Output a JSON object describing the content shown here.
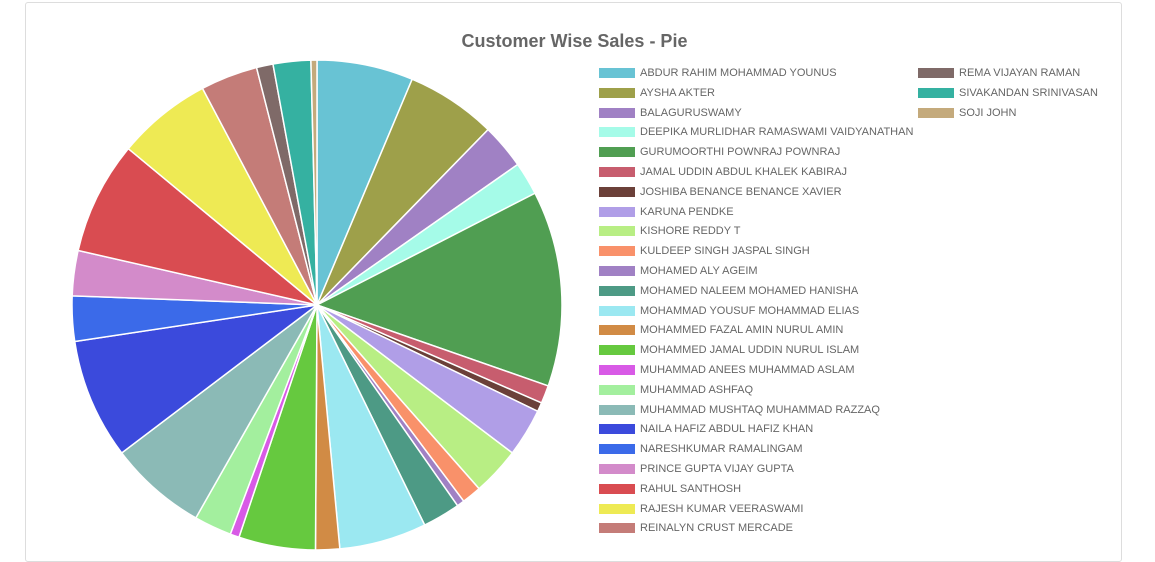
{
  "chart_data": {
    "type": "pie",
    "title": "Customer Wise Sales - Pie",
    "legend_position": "right",
    "series": [
      {
        "label": "ABDUR RAHIM MOHAMMAD YOUNUS",
        "value": 6.4,
        "color": "#68c3d4"
      },
      {
        "label": "AYSHA AKTER",
        "value": 6.0,
        "color": "#9ea04a"
      },
      {
        "label": "BALAGURUSWAMY",
        "value": 3.0,
        "color": "#a081c4"
      },
      {
        "label": "DEEPIKA MURLIDHAR RAMASWAMI VAIDYANATHAN",
        "value": 2.2,
        "color": "#a5fbe8"
      },
      {
        "label": "GURUMOORTHI POWNRAJ POWNRAJ",
        "value": 13.0,
        "color": "#509e52"
      },
      {
        "label": "JAMAL UDDIN ABDUL KHALEK KABIRAJ",
        "value": 1.2,
        "color": "#c75d6e"
      },
      {
        "label": "JOSHIBA BENANCE BENANCE XAVIER",
        "value": 0.6,
        "color": "#6b4039"
      },
      {
        "label": "KARUNA PENDKE",
        "value": 3.2,
        "color": "#b09ee7"
      },
      {
        "label": "KISHORE REDDY T",
        "value": 3.2,
        "color": "#b8ee84"
      },
      {
        "label": "KULDEEP SINGH JASPAL SINGH",
        "value": 1.3,
        "color": "#f9916a"
      },
      {
        "label": "MOHAMED ALY AGEIM",
        "value": 0.5,
        "color": "#a081c4"
      },
      {
        "label": "MOHAMED NALEEM MOHAMED HANISHA",
        "value": 2.5,
        "color": "#4d9a85"
      },
      {
        "label": "MOHAMMAD YOUSUF MOHAMMAD ELIAS",
        "value": 5.8,
        "color": "#9be8f1"
      },
      {
        "label": "MOHAMMED FAZAL AMIN NURUL AMIN",
        "value": 1.6,
        "color": "#d18b45"
      },
      {
        "label": "MOHAMMED JAMAL UDDIN NURUL ISLAM",
        "value": 5.1,
        "color": "#66c93f"
      },
      {
        "label": "MUHAMMAD ANEES MUHAMMAD ASLAM",
        "value": 0.6,
        "color": "#d85ae6"
      },
      {
        "label": "MUHAMMAD ASHFAQ",
        "value": 2.5,
        "color": "#a3ef9e"
      },
      {
        "label": "MUHAMMAD MUSHTAQ MUHAMMAD RAZZAQ",
        "value": 6.5,
        "color": "#8bbab6"
      },
      {
        "label": "NAILA HAFIZ ABDUL HAFIZ KHAN",
        "value": 8.0,
        "color": "#3b4adc"
      },
      {
        "label": "NARESHKUMAR RAMALINGAM",
        "value": 3.0,
        "color": "#3b6ae9"
      },
      {
        "label": "PRINCE GUPTA VIJAY GUPTA",
        "value": 3.0,
        "color": "#d38bca"
      },
      {
        "label": "RAHUL SANTHOSH",
        "value": 7.5,
        "color": "#d94c51"
      },
      {
        "label": "RAJESH KUMAR VEERASWAMI",
        "value": 6.3,
        "color": "#eeea54"
      },
      {
        "label": "REINALYN CRUST MERCADE",
        "value": 3.8,
        "color": "#c47c78"
      },
      {
        "label": "REMA VIJAYAN RAMAN",
        "value": 1.1,
        "color": "#7f6a68"
      },
      {
        "label": "SIVAKANDAN SRINIVASAN",
        "value": 2.5,
        "color": "#35b1a1"
      },
      {
        "label": "SOJI JOHN",
        "value": 0.4,
        "color": "#c4aa7c"
      }
    ]
  }
}
